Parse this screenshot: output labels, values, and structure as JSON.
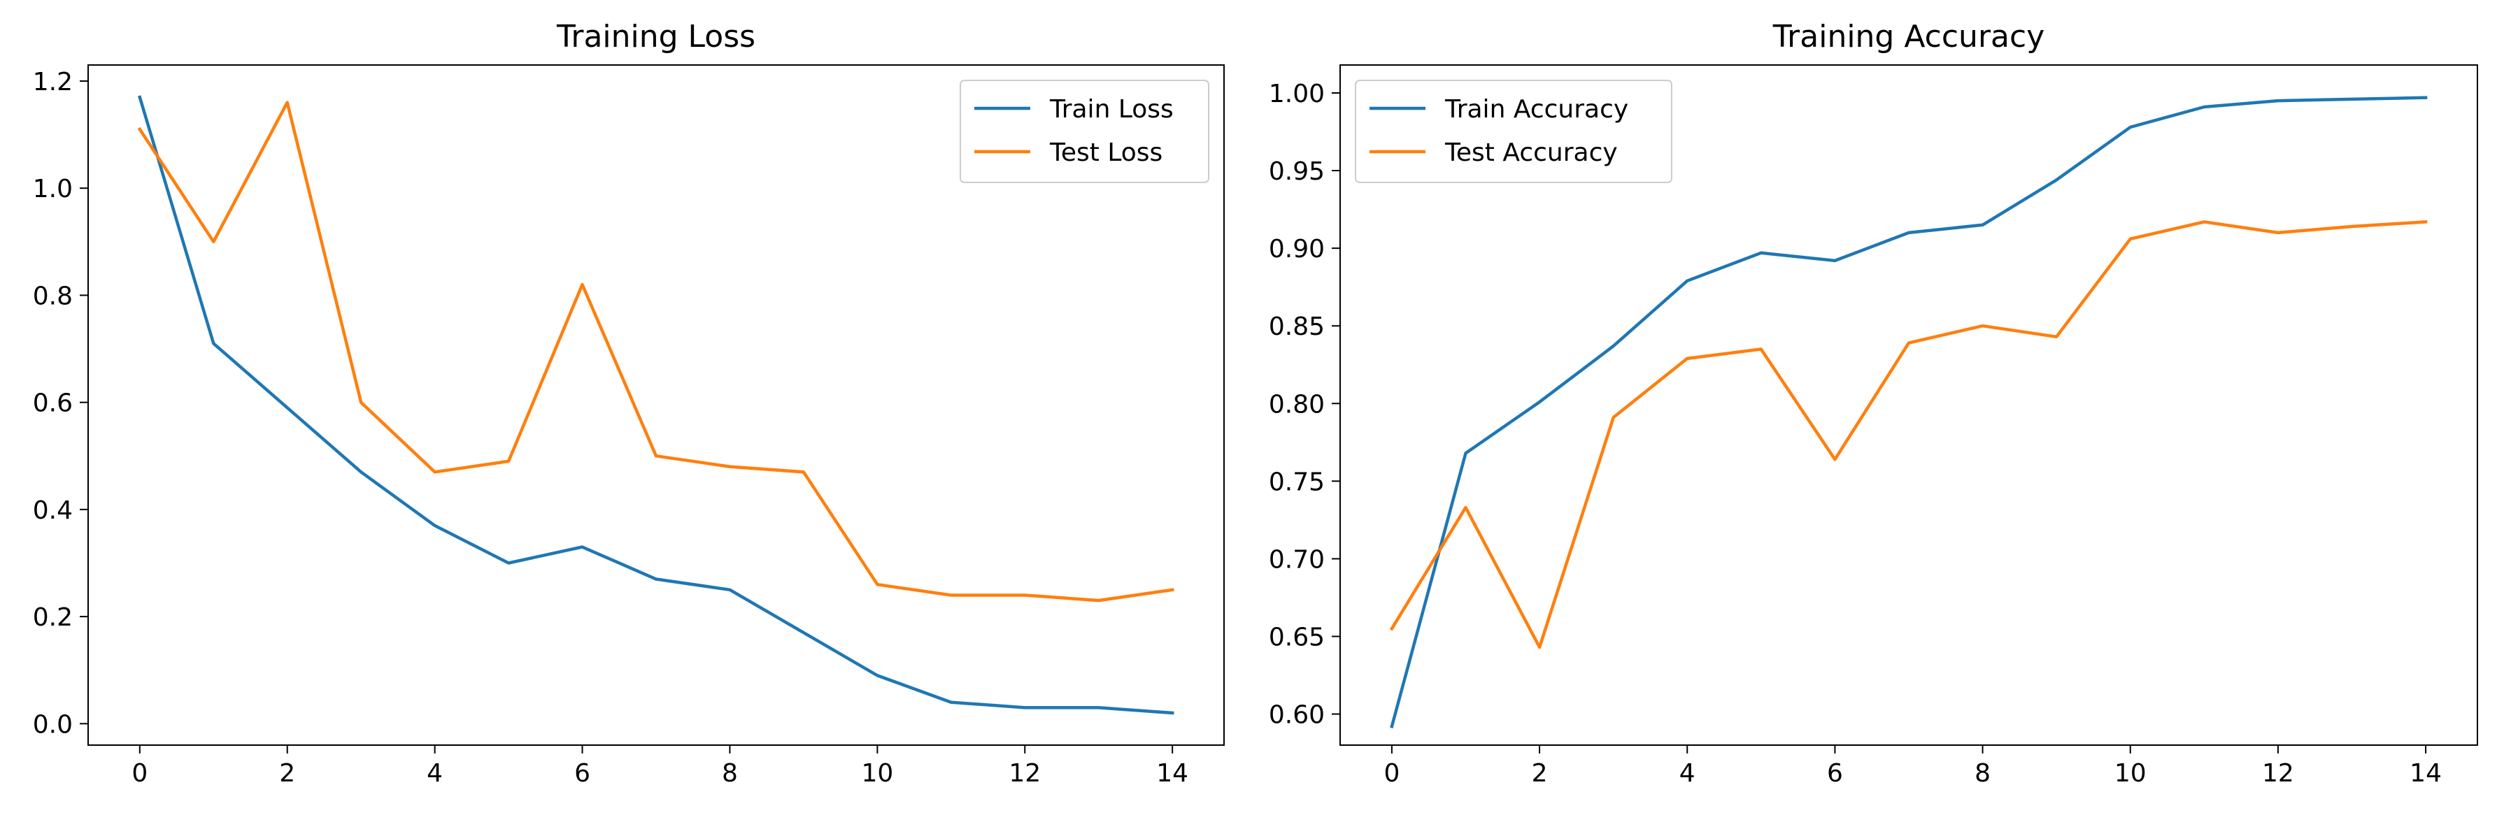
{
  "chart_data": [
    {
      "type": "line",
      "title": "Training Loss",
      "xlabel": "",
      "ylabel": "",
      "x": [
        0,
        1,
        2,
        3,
        4,
        5,
        6,
        7,
        8,
        9,
        10,
        11,
        12,
        13,
        14
      ],
      "xlim": [
        -0.7,
        14.7
      ],
      "ylim": [
        -0.04,
        1.23
      ],
      "xticks": [
        0,
        2,
        4,
        6,
        8,
        10,
        12,
        14
      ],
      "yticks": [
        0.0,
        0.2,
        0.4,
        0.6,
        0.8,
        1.0,
        1.2
      ],
      "ytick_labels": [
        "0.0",
        "0.2",
        "0.4",
        "0.6",
        "0.8",
        "1.0",
        "1.2"
      ],
      "grid": false,
      "legend_position": "top-right",
      "series": [
        {
          "name": "Train Loss",
          "color": "#1f77b4",
          "values": [
            1.17,
            0.71,
            0.59,
            0.47,
            0.37,
            0.3,
            0.33,
            0.27,
            0.25,
            0.17,
            0.09,
            0.04,
            0.03,
            0.03,
            0.02
          ]
        },
        {
          "name": "Test Loss",
          "color": "#ff7f0e",
          "values": [
            1.11,
            0.9,
            1.16,
            0.6,
            0.47,
            0.49,
            0.82,
            0.5,
            0.48,
            0.47,
            0.26,
            0.24,
            0.24,
            0.23,
            0.25
          ]
        }
      ]
    },
    {
      "type": "line",
      "title": "Training Accuracy",
      "xlabel": "",
      "ylabel": "",
      "x": [
        0,
        1,
        2,
        3,
        4,
        5,
        6,
        7,
        8,
        9,
        10,
        11,
        12,
        13,
        14
      ],
      "xlim": [
        -0.7,
        14.7
      ],
      "ylim": [
        0.58,
        1.018
      ],
      "xticks": [
        0,
        2,
        4,
        6,
        8,
        10,
        12,
        14
      ],
      "yticks": [
        0.6,
        0.65,
        0.7,
        0.75,
        0.8,
        0.85,
        0.9,
        0.95,
        1.0
      ],
      "ytick_labels": [
        "0.60",
        "0.65",
        "0.70",
        "0.75",
        "0.80",
        "0.85",
        "0.90",
        "0.95",
        "1.00"
      ],
      "grid": false,
      "legend_position": "top-left",
      "series": [
        {
          "name": "Train Accuracy",
          "color": "#1f77b4",
          "values": [
            0.592,
            0.768,
            0.801,
            0.837,
            0.879,
            0.897,
            0.892,
            0.91,
            0.915,
            0.944,
            0.978,
            0.991,
            0.995,
            0.996,
            0.997
          ]
        },
        {
          "name": "Test Accuracy",
          "color": "#ff7f0e",
          "values": [
            0.655,
            0.733,
            0.643,
            0.791,
            0.829,
            0.835,
            0.764,
            0.839,
            0.85,
            0.843,
            0.906,
            0.917,
            0.91,
            0.914,
            0.917
          ]
        }
      ]
    }
  ]
}
